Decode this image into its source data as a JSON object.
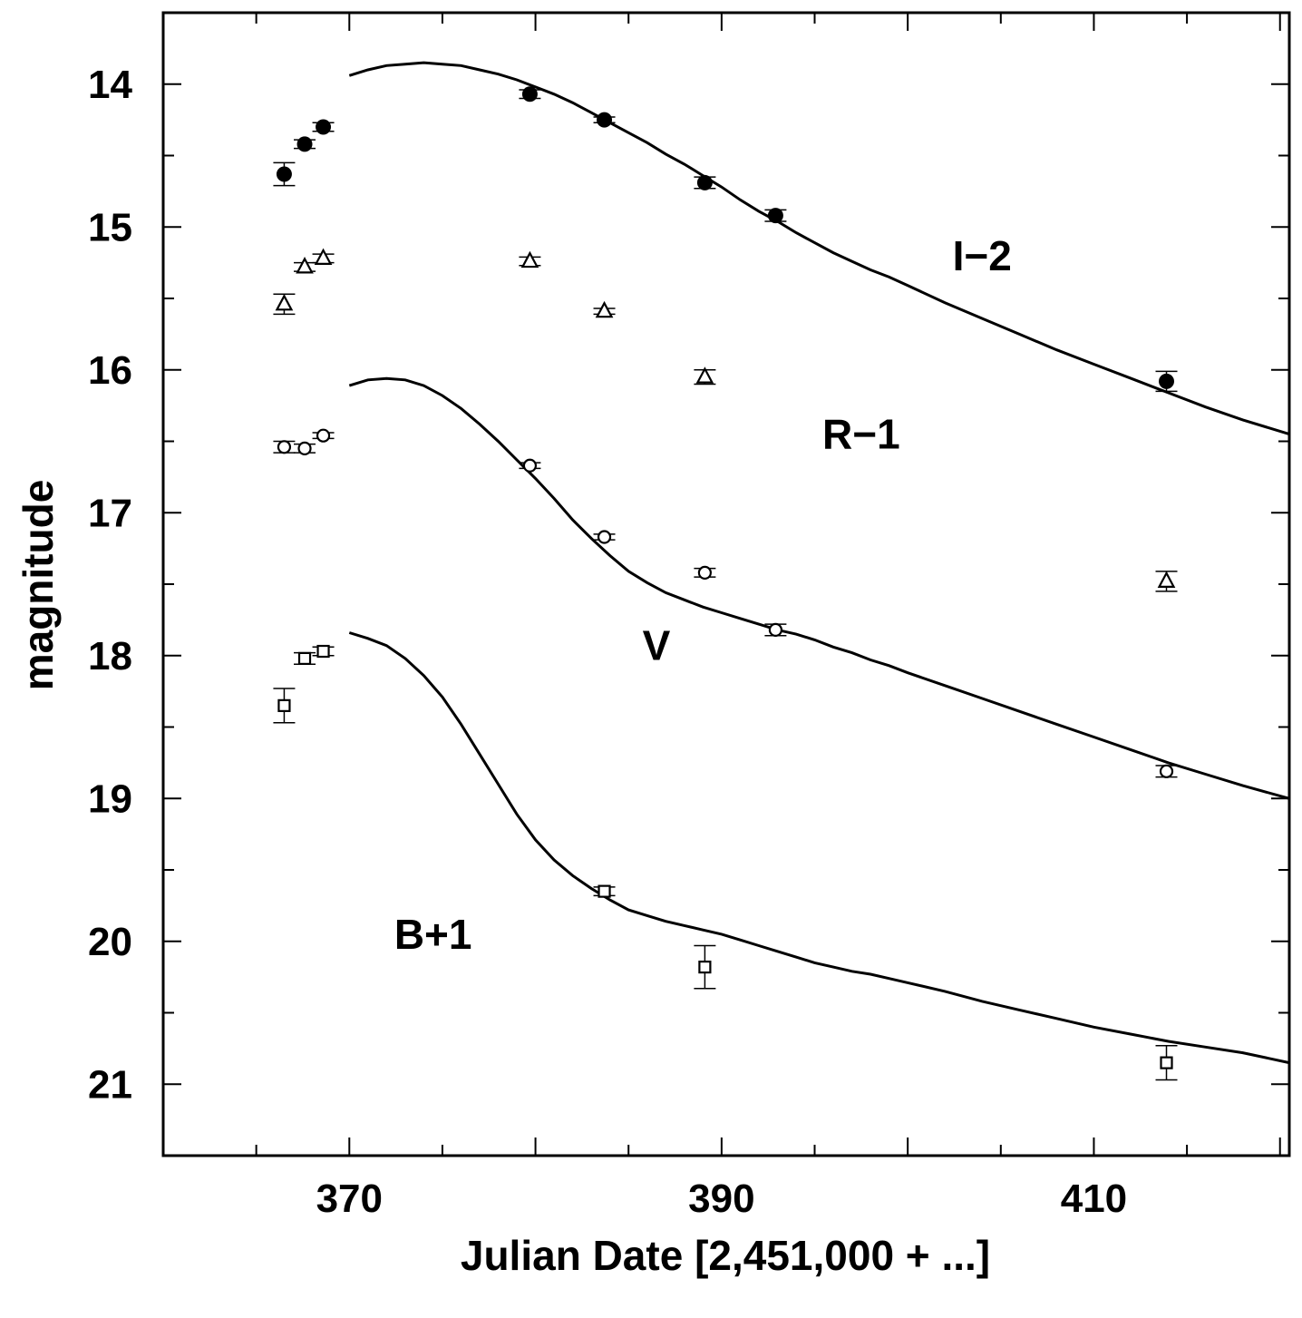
{
  "chart_data": {
    "type": "scatter",
    "xlabel": "Julian Date [2,451,000 + ...]",
    "ylabel": "magnitude",
    "xlim": [
      360,
      420.5
    ],
    "ylim": [
      13.5,
      21.5
    ],
    "y_inverted": true,
    "x_ticks": [
      370,
      390,
      410
    ],
    "y_ticks": [
      14,
      15,
      16,
      17,
      18,
      19,
      20,
      21
    ],
    "band_labels": [
      {
        "text": "I−2",
        "x": 404,
        "y": 15.2
      },
      {
        "text": "R−1",
        "x": 397.5,
        "y": 16.45
      },
      {
        "text": "V",
        "x": 386.5,
        "y": 17.93
      },
      {
        "text": "B+1",
        "x": 374.5,
        "y": 19.95
      }
    ],
    "series": [
      {
        "marker": "filled-circle",
        "points": [
          {
            "x": 366.5,
            "y": 14.63,
            "err": 0.08
          },
          {
            "x": 367.6,
            "y": 14.42,
            "err": 0.03
          },
          {
            "x": 368.6,
            "y": 14.3,
            "err": 0.03
          },
          {
            "x": 379.7,
            "y": 14.07,
            "err": 0.03
          },
          {
            "x": 383.7,
            "y": 14.25,
            "err": 0.02
          },
          {
            "x": 389.1,
            "y": 14.69,
            "err": 0.04
          },
          {
            "x": 392.9,
            "y": 14.92,
            "err": 0.04
          },
          {
            "x": 413.9,
            "y": 16.08,
            "err": 0.07
          }
        ]
      },
      {
        "marker": "open-triangle",
        "points": [
          {
            "x": 366.5,
            "y": 15.54,
            "err": 0.07
          },
          {
            "x": 367.6,
            "y": 15.28,
            "err": 0.03
          },
          {
            "x": 368.6,
            "y": 15.22,
            "err": 0.03
          },
          {
            "x": 379.7,
            "y": 15.24,
            "err": 0.03
          },
          {
            "x": 383.7,
            "y": 15.59,
            "err": 0.02
          },
          {
            "x": 389.1,
            "y": 16.05,
            "err": 0.05
          },
          {
            "x": 413.9,
            "y": 17.48,
            "err": 0.07
          }
        ]
      },
      {
        "marker": "open-circle",
        "points": [
          {
            "x": 366.5,
            "y": 16.54,
            "err": 0.04
          },
          {
            "x": 367.6,
            "y": 16.55,
            "err": 0.03
          },
          {
            "x": 368.6,
            "y": 16.46,
            "err": 0.02
          },
          {
            "x": 379.7,
            "y": 16.67,
            "err": 0.02
          },
          {
            "x": 383.7,
            "y": 17.17,
            "err": 0.02
          },
          {
            "x": 389.1,
            "y": 17.42,
            "err": 0.03
          },
          {
            "x": 392.9,
            "y": 17.82,
            "err": 0.04
          },
          {
            "x": 413.9,
            "y": 18.81,
            "err": 0.04
          }
        ]
      },
      {
        "marker": "open-square",
        "points": [
          {
            "x": 366.5,
            "y": 18.35,
            "err": 0.12
          },
          {
            "x": 367.6,
            "y": 18.02,
            "err": 0.04
          },
          {
            "x": 368.6,
            "y": 17.97,
            "err": 0.03
          },
          {
            "x": 383.7,
            "y": 19.65,
            "err": 0.03
          },
          {
            "x": 389.1,
            "y": 20.18,
            "err": 0.15
          },
          {
            "x": 413.9,
            "y": 20.85,
            "err": 0.12
          }
        ]
      }
    ],
    "curves": [
      {
        "label": "I−2",
        "x": [
          370,
          371,
          372,
          373,
          374,
          375,
          376,
          377,
          378,
          379,
          380,
          381,
          382,
          383,
          384,
          385,
          386,
          387,
          388,
          389,
          390,
          391,
          392,
          393,
          394,
          395,
          396,
          397,
          398,
          399,
          400,
          402,
          404,
          406,
          408,
          410,
          412,
          414,
          416,
          418,
          420.5
        ],
        "y": [
          13.94,
          13.9,
          13.87,
          13.86,
          13.85,
          13.86,
          13.87,
          13.9,
          13.93,
          13.97,
          14.02,
          14.07,
          14.13,
          14.2,
          14.27,
          14.34,
          14.41,
          14.49,
          14.56,
          14.64,
          14.72,
          14.81,
          14.89,
          14.96,
          15.04,
          15.11,
          15.18,
          15.24,
          15.3,
          15.35,
          15.41,
          15.53,
          15.64,
          15.75,
          15.86,
          15.96,
          16.06,
          16.16,
          16.26,
          16.35,
          16.45
        ]
      },
      {
        "label": "V",
        "x": [
          370,
          371,
          372,
          373,
          374,
          375,
          376,
          377,
          378,
          379,
          380,
          381,
          382,
          383,
          384,
          385,
          386,
          387,
          388,
          389,
          390,
          391,
          392,
          393,
          394,
          395,
          396,
          397,
          398,
          399,
          400,
          402,
          404,
          406,
          408,
          410,
          412,
          414,
          416,
          418,
          420.5
        ],
        "y": [
          16.11,
          16.07,
          16.06,
          16.07,
          16.11,
          16.18,
          16.27,
          16.38,
          16.5,
          16.63,
          16.76,
          16.9,
          17.05,
          17.18,
          17.3,
          17.41,
          17.49,
          17.56,
          17.61,
          17.66,
          17.7,
          17.74,
          17.78,
          17.82,
          17.85,
          17.89,
          17.94,
          17.98,
          18.03,
          18.07,
          18.12,
          18.21,
          18.3,
          18.39,
          18.48,
          18.57,
          18.66,
          18.75,
          18.83,
          18.91,
          19.0
        ]
      },
      {
        "label": "B+1",
        "x": [
          370,
          371,
          372,
          373,
          374,
          375,
          376,
          377,
          378,
          379,
          380,
          381,
          382,
          383,
          384,
          385,
          386,
          387,
          388,
          389,
          390,
          391,
          392,
          393,
          394,
          395,
          396,
          397,
          398,
          399,
          400,
          402,
          404,
          406,
          408,
          410,
          412,
          414,
          416,
          418,
          420.5
        ],
        "y": [
          17.84,
          17.88,
          17.93,
          18.02,
          18.14,
          18.29,
          18.48,
          18.69,
          18.9,
          19.11,
          19.29,
          19.43,
          19.54,
          19.63,
          19.71,
          19.78,
          19.82,
          19.86,
          19.89,
          19.92,
          19.95,
          19.99,
          20.03,
          20.07,
          20.11,
          20.15,
          20.18,
          20.21,
          20.23,
          20.26,
          20.29,
          20.35,
          20.42,
          20.48,
          20.54,
          20.6,
          20.65,
          20.7,
          20.74,
          20.78,
          20.85
        ]
      }
    ]
  }
}
